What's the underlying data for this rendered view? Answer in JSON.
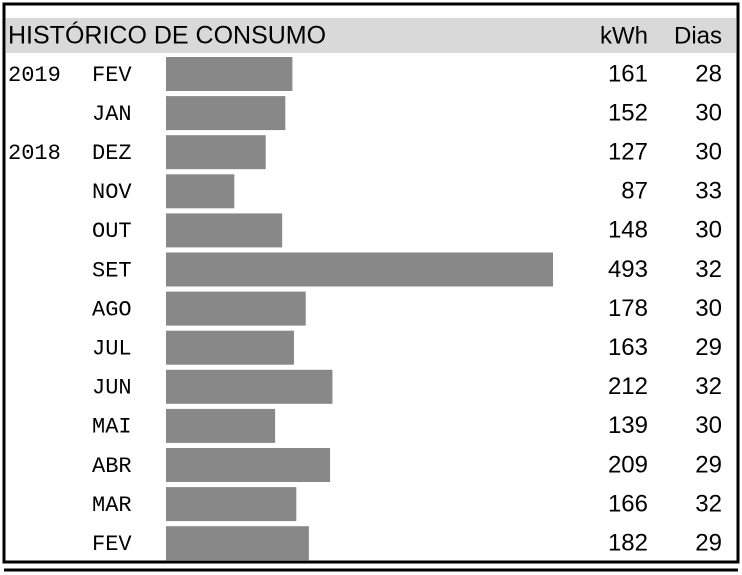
{
  "chart_data": {
    "type": "bar",
    "orientation": "horizontal",
    "title": "HISTÓRICO DE CONSUMO",
    "years": [
      "2019",
      null,
      "2018",
      null,
      null,
      null,
      null,
      null,
      null,
      null,
      null,
      null,
      null
    ],
    "categories": [
      "FEV",
      "JAN",
      "DEZ",
      "NOV",
      "OUT",
      "SET",
      "AGO",
      "JUL",
      "JUN",
      "MAI",
      "ABR",
      "MAR",
      "FEV"
    ],
    "series": [
      {
        "name": "kWh",
        "color": "#888888",
        "values": [
          161,
          152,
          127,
          87,
          148,
          493,
          178,
          163,
          212,
          139,
          209,
          166,
          182
        ]
      },
      {
        "name": "Dias",
        "values": [
          28,
          30,
          30,
          33,
          30,
          32,
          30,
          29,
          32,
          30,
          29,
          32,
          29
        ]
      }
    ]
  }
}
